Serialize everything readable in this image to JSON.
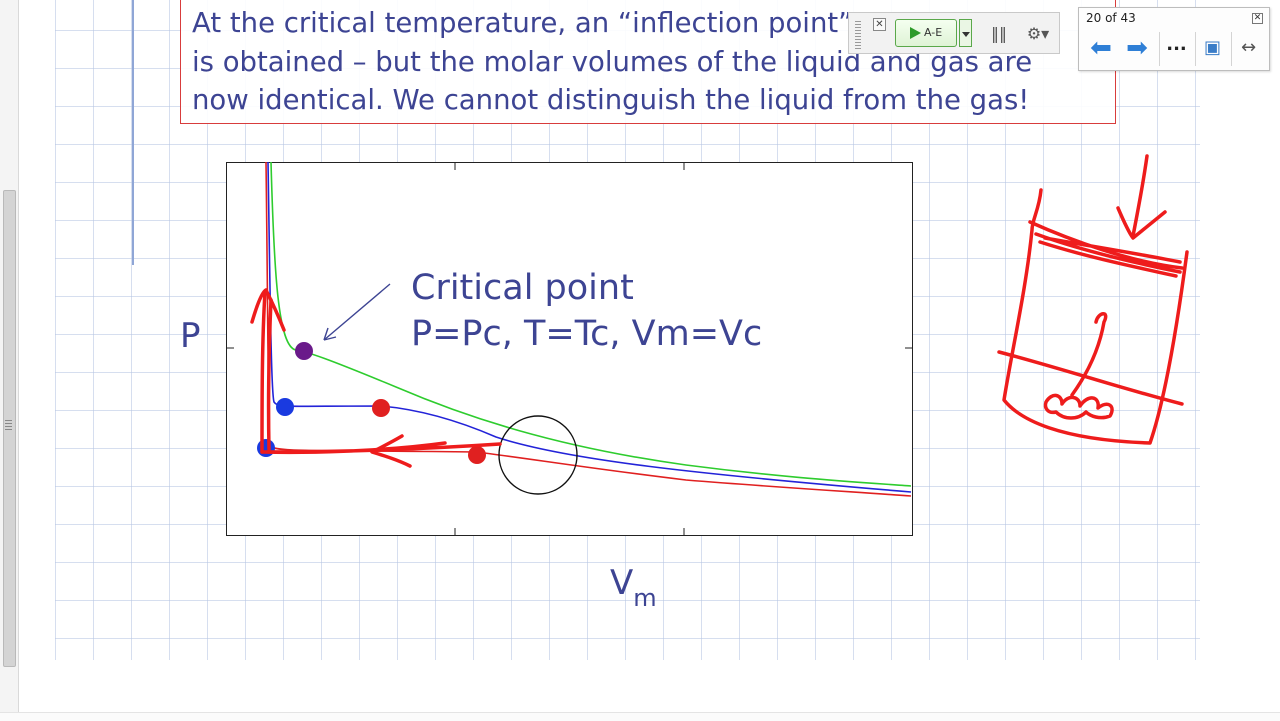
{
  "slide": {
    "text_lines": [
      "At the critical temperature, an “inflection point”",
      "is obtained – but the molar volumes of the liquid and gas are",
      "now identical.  We cannot distinguish the liquid from the gas!"
    ],
    "critical_title": "Critical point",
    "critical_detail": "P=Pc, T=Tc, Vm=Vc",
    "y_axis_label": "P",
    "x_axis_label": "V",
    "x_axis_subscript": "m"
  },
  "chart_data": {
    "type": "line",
    "xlabel": "Vm",
    "ylabel": "P",
    "grid": false,
    "series": [
      {
        "color": "#2ecc2e"
      },
      {
        "color": "#2323d8"
      },
      {
        "color": "#e02020"
      }
    ],
    "points": [
      {
        "color": "#6a1a8a"
      },
      {
        "color": "#1a3ae0"
      },
      {
        "color": "#e02020"
      },
      {
        "color": "#1a3ae0"
      },
      {
        "color": "#e02020"
      }
    ]
  },
  "ink_toolbar": {
    "close_glyph": "✕",
    "play_label": "A-E",
    "bars_glyph": "‖‖",
    "gear_glyph": "⚙▾",
    "icons": [
      "close-icon",
      "play-icon",
      "chevron-down-icon",
      "bars-icon",
      "gear-icon"
    ]
  },
  "nav_panel": {
    "slide_count": "20 of 43",
    "close_glyph": "✕",
    "prev_glyph": "⬅",
    "next_glyph": "➡",
    "more_glyph": "...",
    "present_glyph": "▣",
    "fit_glyph": "↔",
    "icons": [
      "arrow-left-icon",
      "arrow-right-icon",
      "more-icon",
      "monitor-icon",
      "fit-width-icon"
    ]
  },
  "colors": {
    "slide_text": "#3d4493",
    "ink": "#ee1c1c",
    "textbox_border": "#d83c3c"
  }
}
